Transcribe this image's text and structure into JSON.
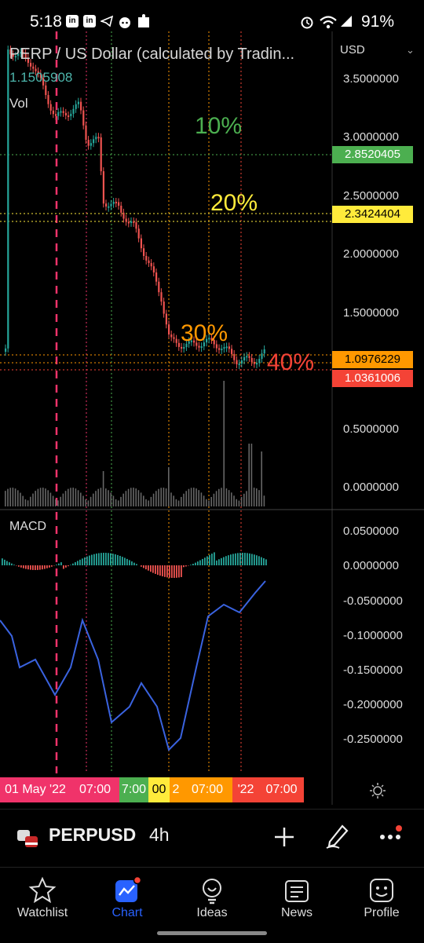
{
  "status_bar": {
    "time": "5:18",
    "battery": "91%"
  },
  "chart": {
    "title": "PERP / US Dollar (calculated by Tradin...",
    "last_price": "1.1505908",
    "volume_label": "Vol",
    "currency": "USD",
    "price_axis": [
      "3.5000000",
      "3.0000000",
      "2.5000000",
      "2.0000000",
      "1.5000000",
      "0.5000000",
      "0.0000000"
    ],
    "percent_labels": [
      {
        "text": "10%",
        "color": "#4caf50"
      },
      {
        "text": "20%",
        "color": "#ffeb3b"
      },
      {
        "text": "30%",
        "color": "#ff9800"
      },
      {
        "text": "40%",
        "color": "#f44336"
      }
    ],
    "price_badges": [
      {
        "value": "2.8520405",
        "color": "#4caf50"
      },
      {
        "value": "2.3424404",
        "color": "#ffeb3b"
      },
      {
        "value": "1.0976229",
        "color": "#ff9800"
      },
      {
        "value": "1.0361006",
        "color": "#f44336"
      }
    ]
  },
  "macd": {
    "label": "MACD",
    "axis": [
      "0.0500000",
      "0.0000000",
      "-0.0500000",
      "-0.1000000",
      "-0.1500000",
      "-0.2000000",
      "-0.2500000"
    ]
  },
  "time_axis": [
    {
      "text": "01 May '22",
      "color": "#f0336a"
    },
    {
      "text": "07:00",
      "color": "#f0336a"
    },
    {
      "text": "7:00",
      "color": "#4caf50"
    },
    {
      "text": "00",
      "color": "#ffeb3b"
    },
    {
      "text": "2",
      "color": "#ff9800"
    },
    {
      "text": "07:00",
      "color": "#ff9800"
    },
    {
      "text": "'22",
      "color": "#f44336"
    },
    {
      "text": "07:00",
      "color": "#f44336"
    }
  ],
  "toolbar": {
    "symbol": "PERPUSD",
    "interval": "4h"
  },
  "nav": {
    "items": [
      {
        "label": "Watchlist",
        "icon": "star-icon"
      },
      {
        "label": "Chart",
        "icon": "chart-icon"
      },
      {
        "label": "Ideas",
        "icon": "lightbulb-icon"
      },
      {
        "label": "News",
        "icon": "news-icon"
      },
      {
        "label": "Profile",
        "icon": "smiley-icon"
      }
    ],
    "active_color": "#2962ff"
  }
}
